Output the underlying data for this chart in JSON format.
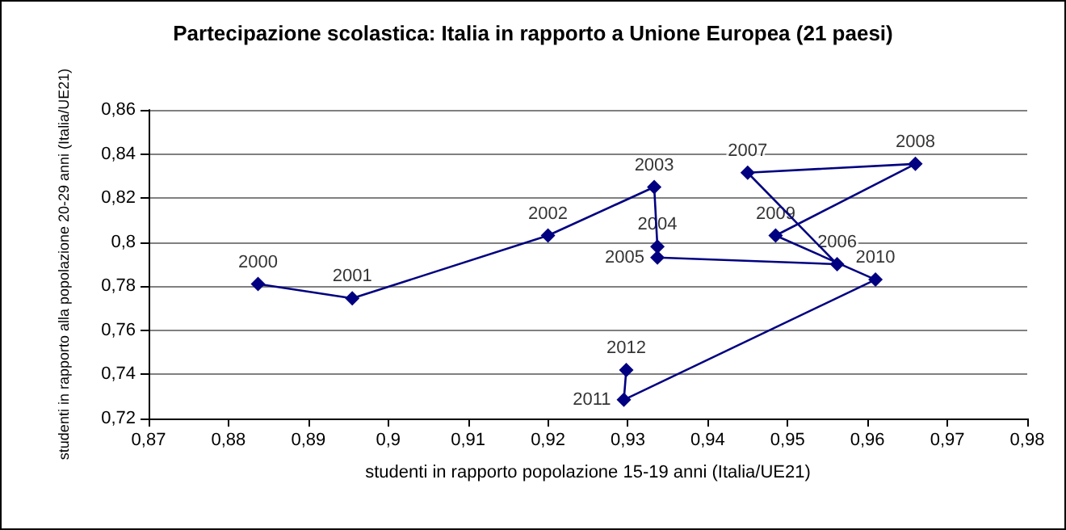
{
  "chart_data": {
    "type": "line",
    "title": "Partecipazione scolastica: Italia in rapporto a Unione Europea (21 paesi)",
    "xlabel": "studenti in rapporto popolazione 15-19 anni (Italia/UE21)",
    "ylabel": "studenti in rapporto alla popolazione 20-29 anni (Italia/UE21)",
    "series": [
      {
        "color": "#000080",
        "x": [
          0.8837,
          0.8955,
          0.92,
          0.9333,
          0.9337,
          0.9337,
          0.9562,
          0.945,
          0.966,
          0.9485,
          0.961,
          0.9295,
          0.9298
        ],
        "values": [
          0.781,
          0.7745,
          0.803,
          0.825,
          0.798,
          0.793,
          0.79,
          0.8315,
          0.8355,
          0.803,
          0.783,
          0.7285,
          0.742
        ]
      }
    ],
    "annotations": [
      {
        "text": "2000",
        "x": 0.8837,
        "y": 0.781
      },
      {
        "text": "2001",
        "x": 0.8955,
        "y": 0.7745
      },
      {
        "text": "2002",
        "x": 0.92,
        "y": 0.803
      },
      {
        "text": "2003",
        "x": 0.9333,
        "y": 0.825
      },
      {
        "text": "2004",
        "x": 0.9337,
        "y": 0.798
      },
      {
        "text": "2005",
        "x": 0.9337,
        "y": 0.793
      },
      {
        "text": "2006",
        "x": 0.9562,
        "y": 0.79
      },
      {
        "text": "2007",
        "x": 0.945,
        "y": 0.8315
      },
      {
        "text": "2008",
        "x": 0.966,
        "y": 0.8355
      },
      {
        "text": "2009",
        "x": 0.9485,
        "y": 0.803
      },
      {
        "text": "2010",
        "x": 0.961,
        "y": 0.783
      },
      {
        "text": "2011",
        "x": 0.9295,
        "y": 0.7285
      },
      {
        "text": "2012",
        "x": 0.9298,
        "y": 0.742
      }
    ],
    "xlim": [
      0.87,
      0.98
    ],
    "xticks": [
      {
        "value": 0.87,
        "label": "0,87"
      },
      {
        "value": 0.88,
        "label": "0,88"
      },
      {
        "value": 0.89,
        "label": "0,89"
      },
      {
        "value": 0.9,
        "label": "0,9"
      },
      {
        "value": 0.91,
        "label": "0,91"
      },
      {
        "value": 0.92,
        "label": "0,92"
      },
      {
        "value": 0.93,
        "label": "0,93"
      },
      {
        "value": 0.94,
        "label": "0,94"
      },
      {
        "value": 0.95,
        "label": "0,95"
      },
      {
        "value": 0.96,
        "label": "0,96"
      },
      {
        "value": 0.97,
        "label": "0,97"
      },
      {
        "value": 0.98,
        "label": "0,98"
      }
    ],
    "ylim": [
      0.72,
      0.86
    ],
    "yticks": [
      {
        "value": 0.72,
        "label": "0,72"
      },
      {
        "value": 0.74,
        "label": "0,74"
      },
      {
        "value": 0.76,
        "label": "0,76"
      },
      {
        "value": 0.78,
        "label": "0,78"
      },
      {
        "value": 0.8,
        "label": "0,8"
      },
      {
        "value": 0.82,
        "label": "0,82"
      },
      {
        "value": 0.84,
        "label": "0,84"
      },
      {
        "value": 0.86,
        "label": "0,86"
      }
    ],
    "grid": "y",
    "marker": "diamond",
    "line_style": "solid"
  }
}
